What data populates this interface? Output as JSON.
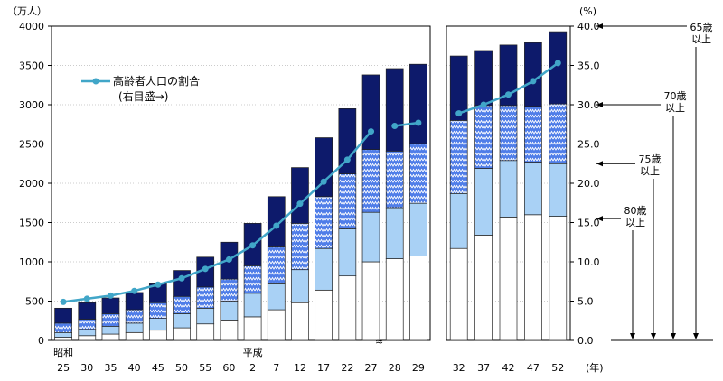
{
  "chart_data": {
    "type": "bar",
    "y_left_unit": "（万人）",
    "y_right_unit": "(%)",
    "x_unit": "(年)",
    "ylim_left": [
      0,
      4000
    ],
    "ylim_right": [
      0,
      40
    ],
    "left_ticks": [
      "0",
      "500",
      "1000",
      "1500",
      "2000",
      "2500",
      "3000",
      "3500",
      "4000"
    ],
    "right_ticks": [
      "0.0",
      "5.0",
      "10.0",
      "15.0",
      "20.0",
      "25.0",
      "30.0",
      "35.0",
      "40.0"
    ],
    "era_labels": [
      {
        "text": "昭和",
        "index": 0
      },
      {
        "text": "平成",
        "index": 8
      }
    ],
    "categories": [
      "25",
      "30",
      "35",
      "40",
      "45",
      "50",
      "55",
      "60",
      "2",
      "7",
      "12",
      "17",
      "22",
      "27",
      "28",
      "29",
      "32",
      "37",
      "42",
      "47",
      "52"
    ],
    "panel_split_index": 16,
    "stack_series": [
      {
        "key": "80+",
        "fill": "#ffffff",
        "values": [
          40,
          60,
          80,
          100,
          130,
          160,
          210,
          260,
          300,
          390,
          480,
          640,
          820,
          1000,
          1040,
          1075,
          1170,
          1340,
          1570,
          1600,
          1580
        ]
      },
      {
        "key": "75-79",
        "fill": "#a9d1f5",
        "values": [
          60,
          80,
          100,
          120,
          150,
          180,
          200,
          240,
          300,
          330,
          420,
          530,
          600,
          630,
          650,
          670,
          700,
          850,
          720,
          670,
          670
        ]
      },
      {
        "key": "70-74",
        "fill": "#4f7de8",
        "values": [
          120,
          130,
          160,
          170,
          200,
          220,
          270,
          280,
          350,
          470,
          590,
          660,
          700,
          800,
          720,
          760,
          930,
          800,
          700,
          710,
          760
        ]
      },
      {
        "key": "65-69",
        "fill": "#0d1a6b",
        "values": [
          190,
          210,
          200,
          220,
          240,
          330,
          380,
          470,
          540,
          640,
          710,
          750,
          830,
          950,
          1050,
          1010,
          820,
          700,
          770,
          810,
          920
        ]
      }
    ],
    "line_series": {
      "name": "高齢者人口の割合",
      "name_sub": "(右目盛→)",
      "values": [
        4.9,
        5.3,
        5.7,
        6.3,
        7.1,
        7.9,
        9.1,
        10.3,
        12.1,
        14.6,
        17.4,
        20.2,
        23.0,
        26.6,
        27.3,
        27.7,
        28.9,
        30.0,
        31.3,
        33.0,
        35.3
      ],
      "break_after_index": 13,
      "color": "#41a6c8"
    },
    "age_labels": [
      "65歳\n以上",
      "70歳\n以上",
      "75歳\n以上",
      "80歳\n以上"
    ],
    "break_marker": "≈"
  }
}
